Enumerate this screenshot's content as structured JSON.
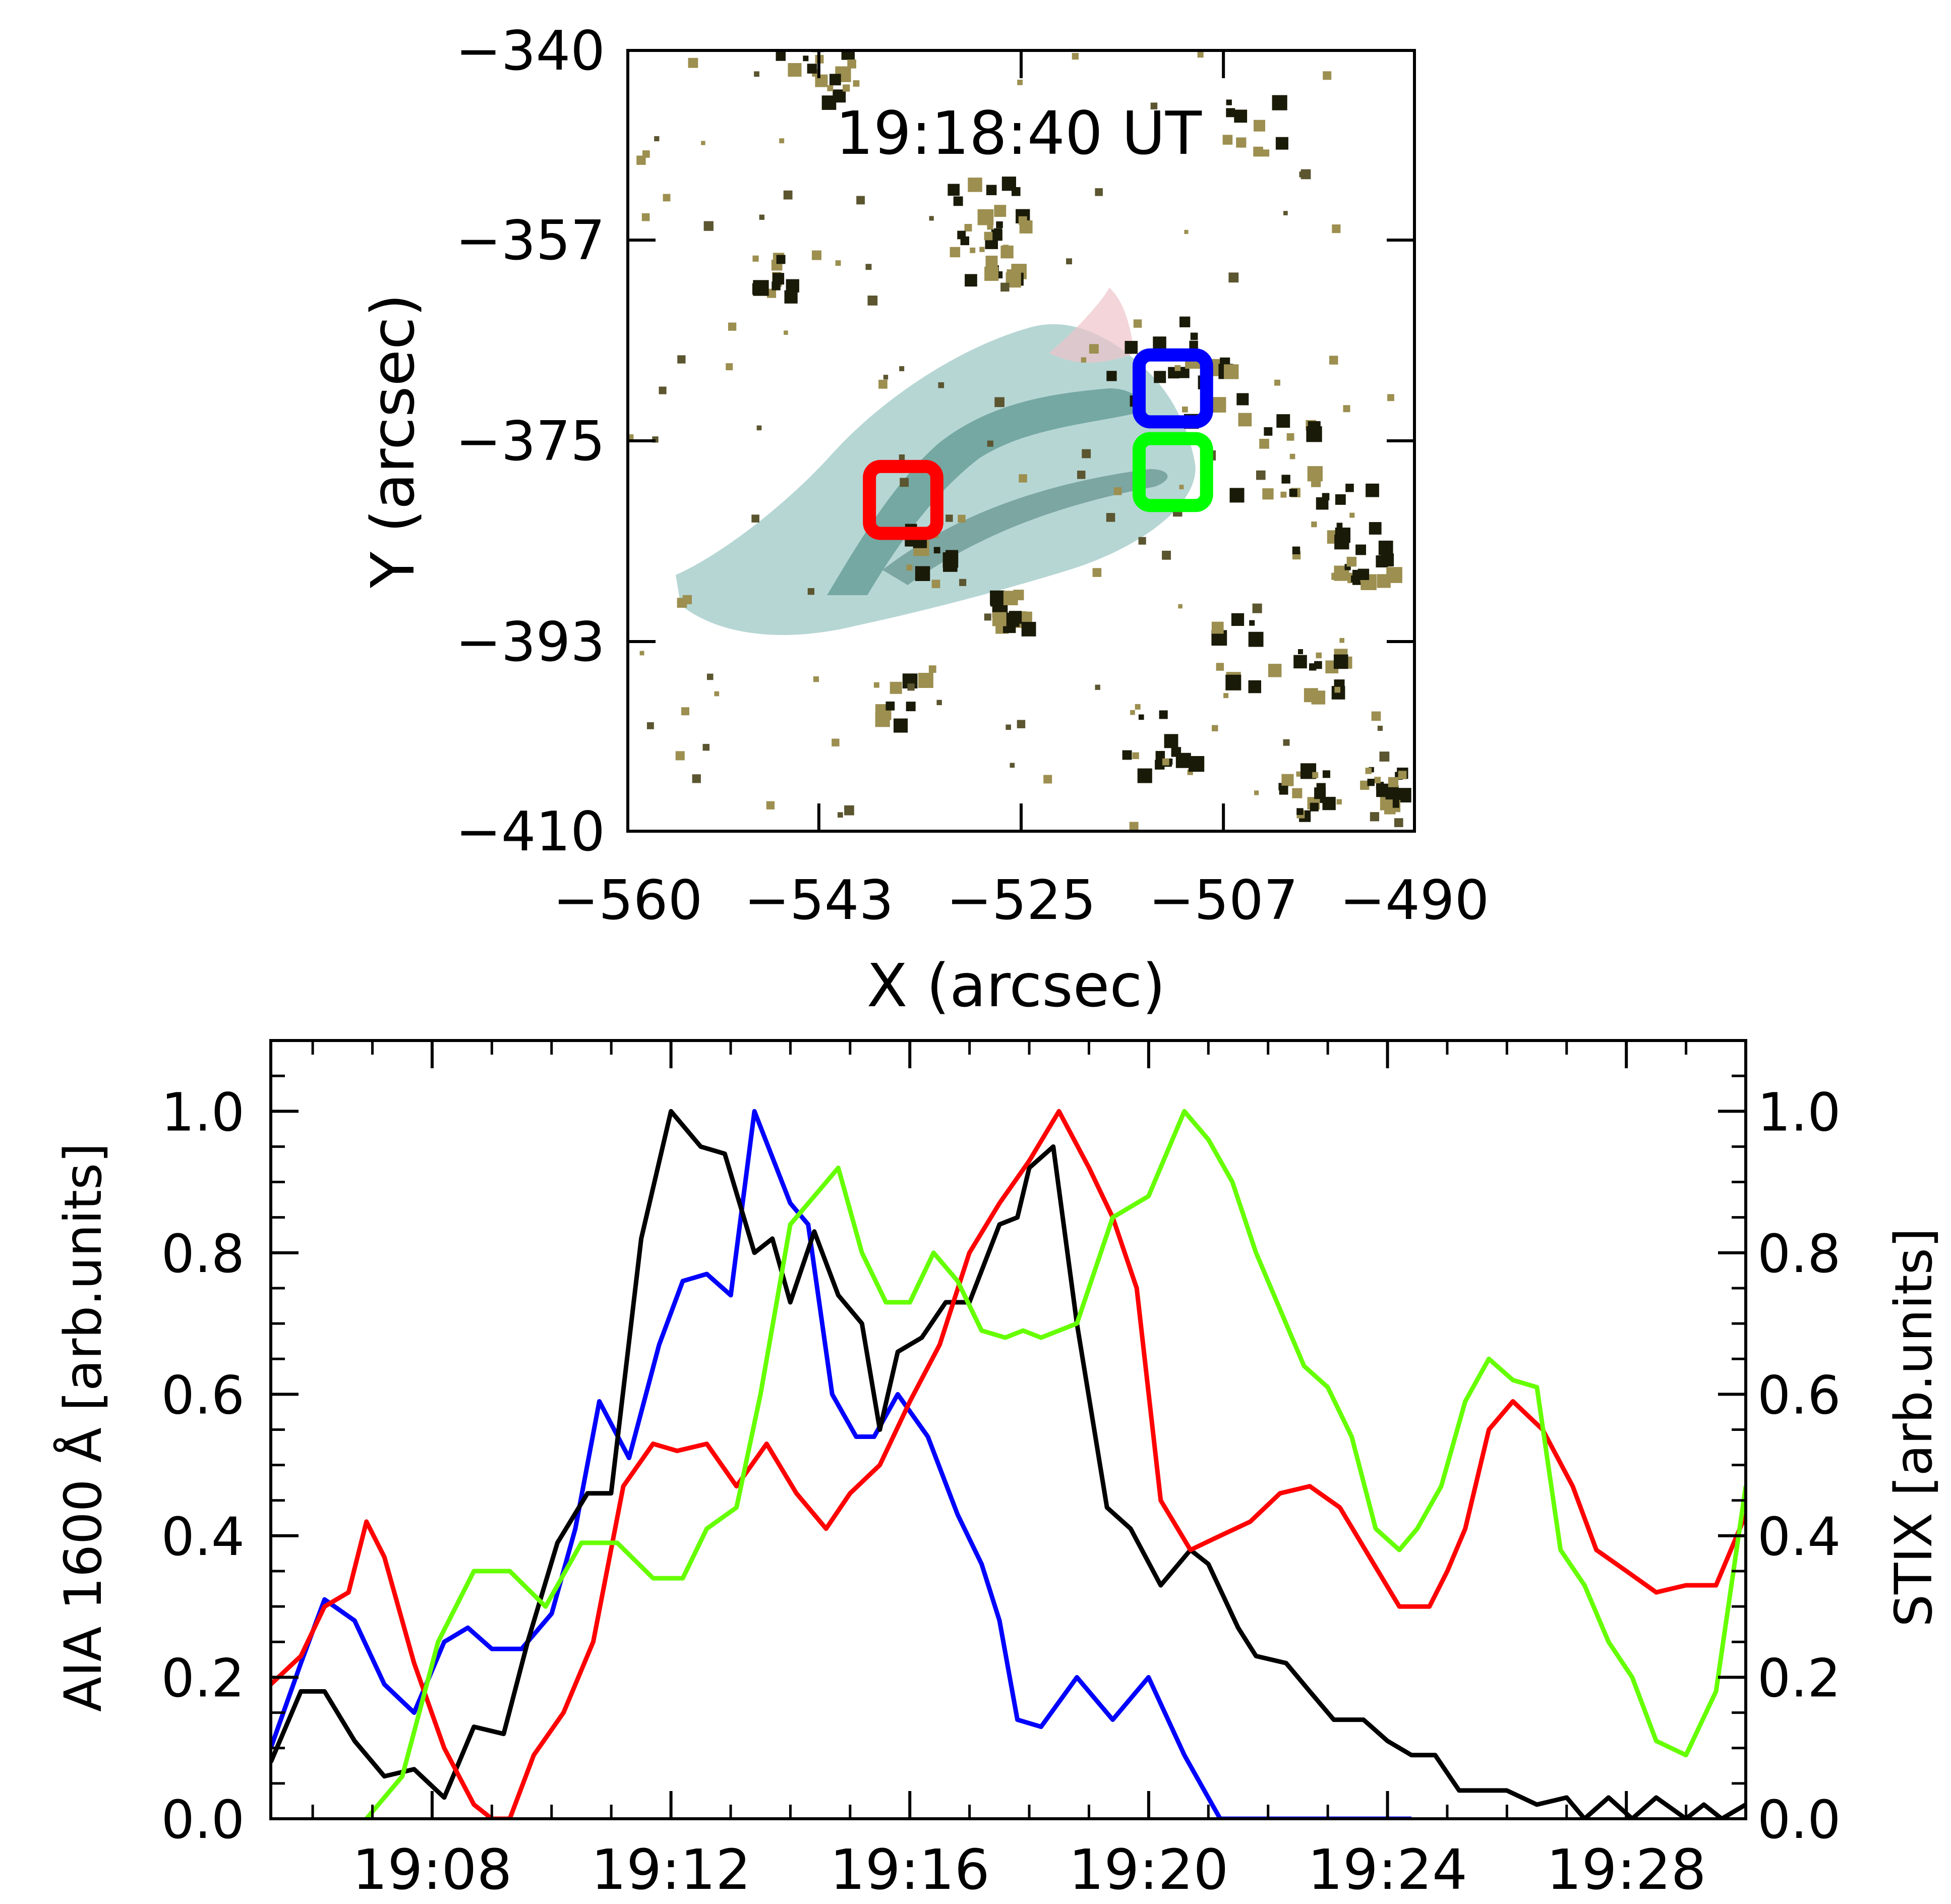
{
  "chart_data": [
    {
      "type": "heatmap",
      "title": "19:18:40 UT",
      "xlabel": "X (arcsec)",
      "ylabel": "Y (arcsec)",
      "xlim": [
        -560,
        -490
      ],
      "ylim": [
        -410,
        -340
      ],
      "xticks": [
        -560,
        -543,
        -525,
        -507,
        -490
      ],
      "yticks": [
        -340,
        -357,
        -375,
        -393,
        -410
      ],
      "xtick_labels": [
        "−560",
        "−543",
        "−525",
        "−507",
        "−490"
      ],
      "ytick_labels": [
        "−340",
        "−357",
        "−375",
        "−393",
        "−410"
      ],
      "boxes": [
        {
          "color": "#ff0000",
          "x": [
            -538.5,
            -532.5
          ],
          "y": [
            -383.3,
            -377.3
          ]
        },
        {
          "color": "#0000ff",
          "x": [
            -514.5,
            -508.5
          ],
          "y": [
            -373.3,
            -367.3
          ]
        },
        {
          "color": "#00ff00",
          "x": [
            -514.5,
            -508.5
          ],
          "y": [
            -380.8,
            -374.8
          ]
        }
      ],
      "colors": {
        "arc": "#7fb5b2",
        "arc_dark": "#2f5d55",
        "kernels": "#1a1a08",
        "kernels_light": "#9c8f50",
        "pink": "#e8b8c0"
      }
    },
    {
      "type": "line",
      "ylabel_left": "AIA 1600 Å [arb.units]",
      "ylabel_right": "STIX [arb.units]",
      "xlim": [
        19.0883,
        19.5
      ],
      "ylim": [
        0,
        1.1
      ],
      "xticks": [
        "19:08",
        "19:12",
        "19:16",
        "19:20",
        "19:24",
        "19:28"
      ],
      "yticks": [
        "0.0",
        "0.2",
        "0.4",
        "0.6",
        "0.8",
        "1.0"
      ],
      "series": [
        {
          "color": "#0000ff",
          "x": [
            19.0883,
            19.0967,
            19.1033,
            19.1117,
            19.12,
            19.1283,
            19.1367,
            19.1433,
            19.15,
            19.1583,
            19.1667,
            19.1733,
            19.18,
            19.1883,
            19.1967,
            19.2033,
            19.21,
            19.2167,
            19.2233,
            19.2333,
            19.2383,
            19.245,
            19.2517,
            19.2567,
            19.2633,
            19.2717,
            19.28,
            19.2867,
            19.2917,
            19.2967,
            19.3033,
            19.3133,
            19.3233,
            19.3333,
            19.3433,
            19.3533,
            19.36,
            19.3667,
            19.3733,
            19.38,
            19.3867,
            19.3933,
            19.4067
          ],
          "values": [
            0.1,
            0.22,
            0.31,
            0.28,
            0.19,
            0.15,
            0.25,
            0.27,
            0.24,
            0.24,
            0.29,
            0.41,
            0.59,
            0.51,
            0.67,
            0.76,
            0.77,
            0.74,
            1.0,
            0.87,
            0.84,
            0.6,
            0.54,
            0.54,
            0.6,
            0.54,
            0.43,
            0.36,
            0.28,
            0.14,
            0.13,
            0.2,
            0.14,
            0.2,
            0.09,
            0.0,
            0.0,
            0.0,
            0.0,
            0.0,
            0.0,
            0.0,
            0.0
          ]
        },
        {
          "color": "#000000",
          "x": [
            19.0883,
            19.0967,
            19.1033,
            19.1117,
            19.12,
            19.1283,
            19.1367,
            19.145,
            19.1533,
            19.16,
            19.1683,
            19.1767,
            19.1833,
            19.1917,
            19.2,
            19.2083,
            19.215,
            19.2233,
            19.2283,
            19.2333,
            19.24,
            19.2467,
            19.2533,
            19.2583,
            19.2633,
            19.27,
            19.2767,
            19.2833,
            19.2917,
            19.2967,
            19.3,
            19.3067,
            19.3133,
            19.3217,
            19.3283,
            19.3367,
            19.345,
            19.35,
            19.3583,
            19.3633,
            19.3717,
            19.3783,
            19.385,
            19.3933,
            19.4,
            19.4067,
            19.4133,
            19.42,
            19.4267,
            19.4333,
            19.4417,
            19.45,
            19.455,
            19.4617,
            19.4683,
            19.475,
            19.4833,
            19.4883,
            19.4933,
            19.5
          ],
          "values": [
            0.08,
            0.18,
            0.18,
            0.11,
            0.06,
            0.07,
            0.03,
            0.13,
            0.12,
            0.25,
            0.39,
            0.46,
            0.46,
            0.82,
            1.0,
            0.95,
            0.94,
            0.8,
            0.82,
            0.73,
            0.83,
            0.74,
            0.7,
            0.55,
            0.66,
            0.68,
            0.73,
            0.73,
            0.84,
            0.85,
            0.92,
            0.95,
            0.7,
            0.44,
            0.41,
            0.33,
            0.38,
            0.36,
            0.27,
            0.23,
            0.22,
            0.18,
            0.14,
            0.14,
            0.11,
            0.09,
            0.09,
            0.04,
            0.04,
            0.04,
            0.02,
            0.03,
            0.0,
            0.03,
            0.0,
            0.03,
            0.0,
            0.02,
            0.0,
            0.02
          ]
        },
        {
          "color": "#ff0000",
          "x": [
            19.0883,
            19.0967,
            19.1033,
            19.11,
            19.115,
            19.12,
            19.1283,
            19.1367,
            19.145,
            19.15,
            19.155,
            19.1617,
            19.17,
            19.1783,
            19.1867,
            19.195,
            19.2017,
            19.21,
            19.2183,
            19.2267,
            19.235,
            19.2433,
            19.25,
            19.2583,
            19.2667,
            19.275,
            19.2833,
            19.2917,
            19.3,
            19.3083,
            19.3167,
            19.3233,
            19.33,
            19.3367,
            19.345,
            19.3533,
            19.3617,
            19.37,
            19.3783,
            19.3867,
            19.395,
            19.4033,
            19.4117,
            19.4167,
            19.4217,
            19.4283,
            19.435,
            19.4433,
            19.4517,
            19.4583,
            19.4667,
            19.475,
            19.4833,
            19.4917,
            19.5
          ],
          "values": [
            0.19,
            0.23,
            0.3,
            0.32,
            0.42,
            0.37,
            0.22,
            0.1,
            0.02,
            0.0,
            0.0,
            0.09,
            0.15,
            0.25,
            0.47,
            0.53,
            0.52,
            0.53,
            0.47,
            0.53,
            0.46,
            0.41,
            0.46,
            0.5,
            0.59,
            0.67,
            0.8,
            0.87,
            0.93,
            1.0,
            0.92,
            0.85,
            0.75,
            0.45,
            0.38,
            0.4,
            0.42,
            0.46,
            0.47,
            0.44,
            0.37,
            0.3,
            0.3,
            0.35,
            0.41,
            0.55,
            0.59,
            0.55,
            0.47,
            0.38,
            0.35,
            0.32,
            0.33,
            0.33,
            0.43
          ]
        },
        {
          "color": "#66ff00",
          "x": [
            19.115,
            19.125,
            19.135,
            19.145,
            19.155,
            19.165,
            19.175,
            19.185,
            19.195,
            19.2033,
            19.21,
            19.2183,
            19.225,
            19.2333,
            19.24,
            19.2467,
            19.2533,
            19.26,
            19.2667,
            19.2733,
            19.28,
            19.2867,
            19.2933,
            19.2983,
            19.3033,
            19.3133,
            19.3233,
            19.3333,
            19.3433,
            19.35,
            19.3567,
            19.3633,
            19.37,
            19.3767,
            19.3833,
            19.39,
            19.3967,
            19.4033,
            19.4083,
            19.415,
            19.4217,
            19.4283,
            19.435,
            19.4417,
            19.4483,
            19.455,
            19.4617,
            19.4683,
            19.475,
            19.4833,
            19.4917,
            19.5
          ],
          "values": [
            0.0,
            0.06,
            0.25,
            0.35,
            0.35,
            0.3,
            0.39,
            0.39,
            0.34,
            0.34,
            0.41,
            0.44,
            0.6,
            0.84,
            0.88,
            0.92,
            0.8,
            0.73,
            0.73,
            0.8,
            0.76,
            0.69,
            0.68,
            0.69,
            0.68,
            0.7,
            0.85,
            0.88,
            1.0,
            0.96,
            0.9,
            0.8,
            0.72,
            0.64,
            0.61,
            0.54,
            0.41,
            0.38,
            0.41,
            0.47,
            0.59,
            0.65,
            0.62,
            0.61,
            0.38,
            0.33,
            0.25,
            0.2,
            0.11,
            0.09,
            0.18,
            0.47
          ]
        }
      ]
    }
  ]
}
